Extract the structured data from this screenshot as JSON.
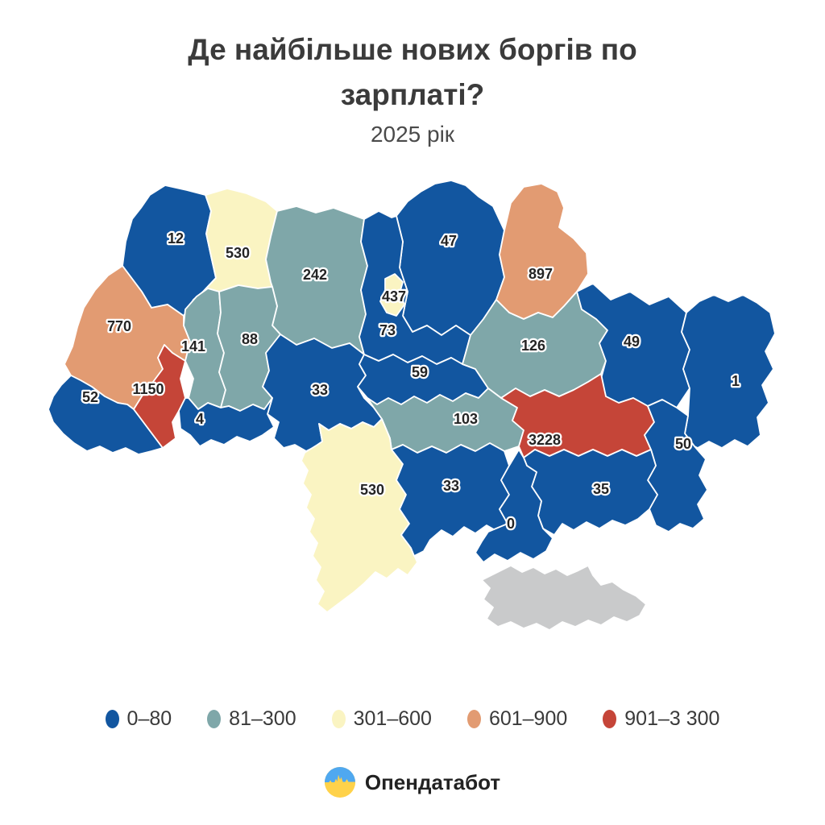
{
  "header": {
    "title": "Де найбільше нових боргів по зарплаті?",
    "subtitle": "2025 рік"
  },
  "legend": {
    "items": [
      {
        "label": "0–80",
        "color": "#1256A0"
      },
      {
        "label": "81–300",
        "color": "#7FA7A9"
      },
      {
        "label": "301–600",
        "color": "#FAF4C2"
      },
      {
        "label": "601–900",
        "color": "#E29B72"
      },
      {
        "label": "901–3 300",
        "color": "#C54538"
      }
    ]
  },
  "footer": {
    "brand": "Опендатабот",
    "logo_colors": {
      "top": "#4FA8F0",
      "bottom": "#FFD24A"
    }
  },
  "chart_data": {
    "type": "choropleth",
    "title": "Де найбільше нових боргів по зарплаті?",
    "subtitle": "2025 рік",
    "legend_position": "bottom",
    "no_data_color": "#C9CACB",
    "bins": [
      {
        "range": "0–80",
        "color": "#1256A0"
      },
      {
        "range": "81–300",
        "color": "#7FA7A9"
      },
      {
        "range": "301–600",
        "color": "#FAF4C2"
      },
      {
        "range": "601–900",
        "color": "#E29B72"
      },
      {
        "range": "901–3 300",
        "color": "#C54538"
      }
    ],
    "regions": [
      {
        "id": "volyn",
        "name": "Волинська",
        "value": 12,
        "color": "#1256A0"
      },
      {
        "id": "rivne",
        "name": "Рівненська",
        "value": 530,
        "color": "#FAF4C2"
      },
      {
        "id": "zhytomyr",
        "name": "Житомирська",
        "value": 242,
        "color": "#7FA7A9"
      },
      {
        "id": "chernihiv",
        "name": "Чернігівська",
        "value": 47,
        "color": "#1256A0"
      },
      {
        "id": "sumy",
        "name": "Сумська",
        "value": 897,
        "color": "#E29B72"
      },
      {
        "id": "kyiv",
        "name": "Київська",
        "value": 73,
        "color": "#1256A0"
      },
      {
        "id": "kyiv_city",
        "name": "м. Київ",
        "value": 437,
        "color": "#FAF4C2"
      },
      {
        "id": "lviv",
        "name": "Львівська",
        "value": 770,
        "color": "#E29B72"
      },
      {
        "id": "ternopil",
        "name": "Тернопільська",
        "value": 141,
        "color": "#7FA7A9"
      },
      {
        "id": "khmelnytskyi",
        "name": "Хмельницька",
        "value": 88,
        "color": "#7FA7A9"
      },
      {
        "id": "vinnytsia",
        "name": "Вінницька",
        "value": 33,
        "color": "#1256A0"
      },
      {
        "id": "cherkasy",
        "name": "Черкаська",
        "value": 59,
        "color": "#1256A0"
      },
      {
        "id": "poltava",
        "name": "Полтавська",
        "value": 126,
        "color": "#7FA7A9"
      },
      {
        "id": "kharkiv",
        "name": "Харківська",
        "value": 49,
        "color": "#1256A0"
      },
      {
        "id": "luhansk",
        "name": "Луганська",
        "value": 1,
        "color": "#1256A0"
      },
      {
        "id": "zakarpattia",
        "name": "Закарпатська",
        "value": 52,
        "color": "#1256A0"
      },
      {
        "id": "ivano_frankivsk",
        "name": "Івано-Франківська",
        "value": 1150,
        "color": "#C54538"
      },
      {
        "id": "chernivtsi",
        "name": "Чернівецька",
        "value": 4,
        "color": "#1256A0"
      },
      {
        "id": "kirovohrad",
        "name": "Кіровоградська",
        "value": 103,
        "color": "#7FA7A9"
      },
      {
        "id": "dnipro",
        "name": "Дніпропетровська",
        "value": 3228,
        "color": "#C54538"
      },
      {
        "id": "donetsk",
        "name": "Донецька",
        "value": 50,
        "color": "#1256A0"
      },
      {
        "id": "odesa",
        "name": "Одеська",
        "value": 530,
        "color": "#FAF4C2"
      },
      {
        "id": "mykolaiv",
        "name": "Миколаївська",
        "value": 33,
        "color": "#1256A0"
      },
      {
        "id": "zaporizhzhia",
        "name": "Запорізька",
        "value": 35,
        "color": "#1256A0"
      },
      {
        "id": "kherson",
        "name": "Херсонська",
        "value": 0,
        "color": "#1256A0"
      },
      {
        "id": "crimea",
        "name": "АР Крим",
        "value": null,
        "color": "#C9CACB"
      }
    ]
  }
}
